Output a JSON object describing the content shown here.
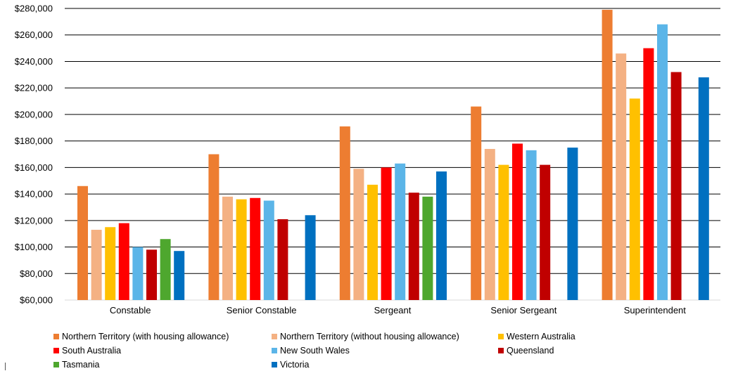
{
  "chart_data": {
    "type": "bar",
    "title": "",
    "xlabel": "",
    "ylabel": "",
    "ylim": [
      60000,
      280000
    ],
    "ytick_values": [
      60000,
      80000,
      100000,
      120000,
      140000,
      160000,
      180000,
      200000,
      220000,
      240000,
      260000,
      280000
    ],
    "ytick_labels": [
      "$60,000",
      "$80,000",
      "$100,000",
      "$120,000",
      "$140,000",
      "$160,000",
      "$180,000",
      "$200,000",
      "$220,000",
      "$240,000",
      "$260,000",
      "$280,000"
    ],
    "grid": "horizontal",
    "legend_position": "bottom",
    "categories": [
      "Constable",
      "Senior Constable",
      "Sergeant",
      "Senior Sergeant",
      "Superintendent"
    ],
    "series": [
      {
        "name": "Northern Territory (with housing allowance)",
        "color": "#ED7D31",
        "values": [
          146000,
          170000,
          191000,
          206000,
          279000
        ]
      },
      {
        "name": "Northern Territory (without housing allowance)",
        "color": "#F4B183",
        "values": [
          113000,
          138000,
          159000,
          174000,
          246000
        ]
      },
      {
        "name": "Western Australia",
        "color": "#FFC000",
        "values": [
          115000,
          136000,
          147000,
          162000,
          212000
        ]
      },
      {
        "name": "South Australia",
        "color": "#FF0000",
        "values": [
          118000,
          137000,
          160000,
          178000,
          250000
        ]
      },
      {
        "name": "New South Wales",
        "color": "#5BB5E8",
        "values": [
          100000,
          135000,
          163000,
          173000,
          268000
        ]
      },
      {
        "name": "Queensland",
        "color": "#C00000",
        "values": [
          98000,
          121000,
          141000,
          162000,
          232000
        ]
      },
      {
        "name": "Tasmania",
        "color": "#4EA72E",
        "values": [
          106000,
          null,
          138000,
          null,
          null
        ]
      },
      {
        "name": "Victoria",
        "color": "#0070C0",
        "values": [
          97000,
          124000,
          157000,
          175000,
          228000
        ]
      }
    ]
  }
}
